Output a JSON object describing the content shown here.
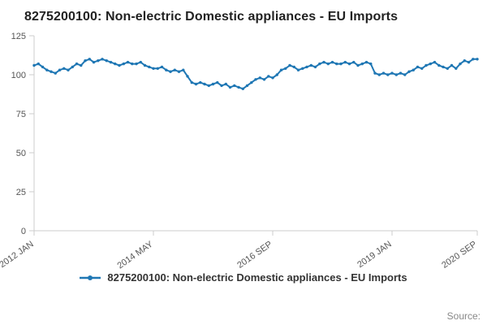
{
  "title": "8275200100: Non-electric Domestic appliances - EU Imports",
  "legend": {
    "label": "8275200100: Non-electric Domestic appliances - EU Imports"
  },
  "source_label": "Source:",
  "colors": {
    "line": "#1f77b4",
    "axis": "#cccccc",
    "tick_text": "#555555",
    "title_text": "#222222"
  },
  "chart_data": {
    "type": "line",
    "title": "8275200100: Non-electric Domestic appliances - EU Imports",
    "frequency": "monthly",
    "x_start": "2012 JAN",
    "x_end": "2020 SEP",
    "ylim": [
      0,
      125
    ],
    "yticks": [
      0,
      25,
      50,
      75,
      100,
      125
    ],
    "xticks": [
      {
        "label": "2012 JAN",
        "index": 0
      },
      {
        "label": "2014 MAY",
        "index": 28
      },
      {
        "label": "2016 SEP",
        "index": 56
      },
      {
        "label": "2019 JAN",
        "index": 84
      },
      {
        "label": "2020 SEP",
        "index": 104
      }
    ],
    "grid": false,
    "legend_position": "bottom",
    "values": [
      106,
      107,
      105,
      103,
      102,
      101,
      103,
      104,
      103,
      105,
      107,
      106,
      109,
      110,
      108,
      109,
      110,
      109,
      108,
      107,
      106,
      107,
      108,
      107,
      107,
      108,
      106,
      105,
      104,
      104,
      105,
      103,
      102,
      103,
      102,
      103,
      99,
      95,
      94,
      95,
      94,
      93,
      94,
      95,
      93,
      94,
      92,
      93,
      92,
      91,
      93,
      95,
      97,
      98,
      97,
      99,
      98,
      100,
      103,
      104,
      106,
      105,
      103,
      104,
      105,
      106,
      105,
      107,
      108,
      107,
      108,
      107,
      107,
      108,
      107,
      108,
      106,
      107,
      108,
      107,
      101,
      100,
      101,
      100,
      101,
      100,
      101,
      100,
      102,
      103,
      105,
      104,
      106,
      107,
      108,
      106,
      105,
      104,
      106,
      104,
      107,
      109,
      108,
      110,
      110
    ]
  }
}
